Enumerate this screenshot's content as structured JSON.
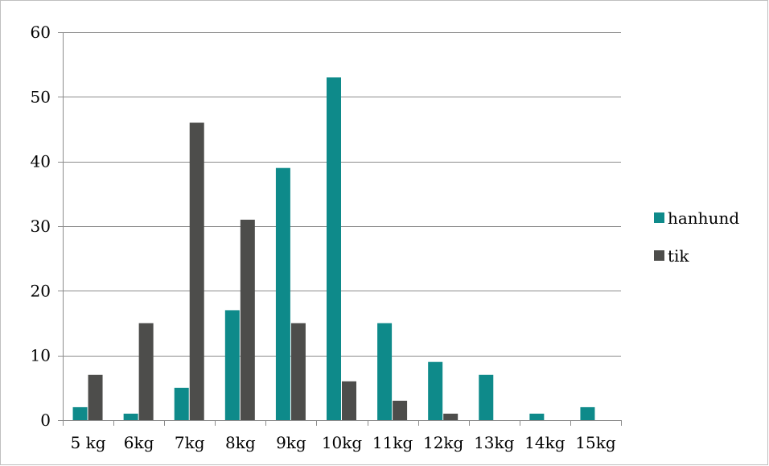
{
  "chart_data": {
    "type": "bar",
    "categories": [
      "5 kg",
      "6kg",
      "7kg",
      "8kg",
      "9kg",
      "10kg",
      "11kg",
      "12kg",
      "13kg",
      "14kg",
      "15kg"
    ],
    "series": [
      {
        "name": "hanhund",
        "values": [
          2,
          1,
          5,
          17,
          39,
          53,
          15,
          9,
          7,
          1,
          2
        ],
        "color": "#0e8a8a"
      },
      {
        "name": "tik",
        "values": [
          7,
          15,
          46,
          31,
          15,
          6,
          3,
          1,
          0,
          0,
          0
        ],
        "color": "#4d4d4b"
      }
    ],
    "title": "",
    "xlabel": "",
    "ylabel": "",
    "ylim": [
      0,
      60
    ],
    "yticks": [
      0,
      10,
      20,
      30,
      40,
      50,
      60
    ],
    "grid": true,
    "legend_position": "right"
  }
}
